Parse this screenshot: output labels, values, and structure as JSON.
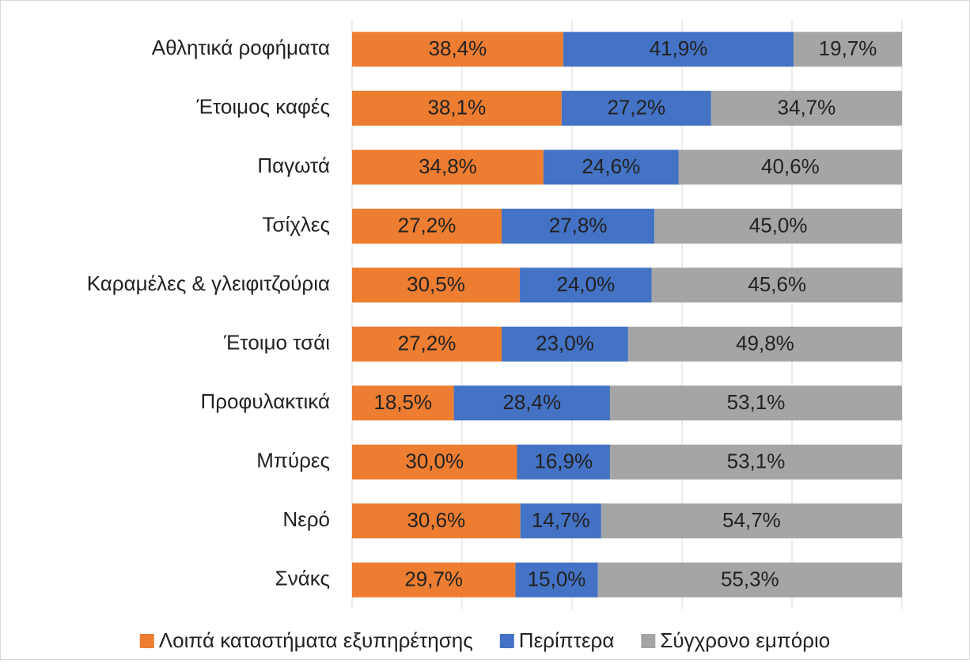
{
  "chart_data": {
    "type": "stacked-barh",
    "categories": [
      "Αθλητικά ροφήματα",
      "Έτοιμος καφές",
      "Παγωτά",
      "Τσίχλες",
      "Καραμέλες & γλειφιτζούρια",
      "Έτοιμο τσάι",
      "Προφυλακτικά",
      "Μπύρες",
      "Νερό",
      "Σνάκς"
    ],
    "series": [
      {
        "name": "Λοιπά καταστήματα εξυπηρέτησης",
        "color": "#ed7d31",
        "values": [
          38.4,
          38.1,
          34.8,
          27.2,
          30.5,
          27.2,
          18.5,
          30.0,
          30.6,
          29.7
        ],
        "value_labels": [
          "38,4%",
          "38,1%",
          "34,8%",
          "27,2%",
          "30,5%",
          "27,2%",
          "18,5%",
          "30,0%",
          "30,6%",
          "29,7%"
        ]
      },
      {
        "name": "Περίπτερα",
        "color": "#4472c4",
        "values": [
          41.9,
          27.2,
          24.6,
          27.8,
          24.0,
          23.0,
          28.4,
          16.9,
          14.7,
          15.0
        ],
        "value_labels": [
          "41,9%",
          "27,2%",
          "24,6%",
          "27,8%",
          "24,0%",
          "23,0%",
          "28,4%",
          "16,9%",
          "14,7%",
          "15,0%"
        ]
      },
      {
        "name": "Σύγχρονο εμπόριο",
        "color": "#a5a5a5",
        "values": [
          19.7,
          34.7,
          40.6,
          45.0,
          45.6,
          49.8,
          53.1,
          53.1,
          54.7,
          55.3
        ],
        "value_labels": [
          "19,7%",
          "34,7%",
          "40,6%",
          "45,0%",
          "45,6%",
          "49,8%",
          "53,1%",
          "53,1%",
          "54,7%",
          "55,3%"
        ]
      }
    ],
    "xlim": [
      0,
      100
    ],
    "xticks": [
      0,
      20,
      40,
      60,
      80,
      100
    ],
    "grid": true,
    "legend": "bottom"
  }
}
